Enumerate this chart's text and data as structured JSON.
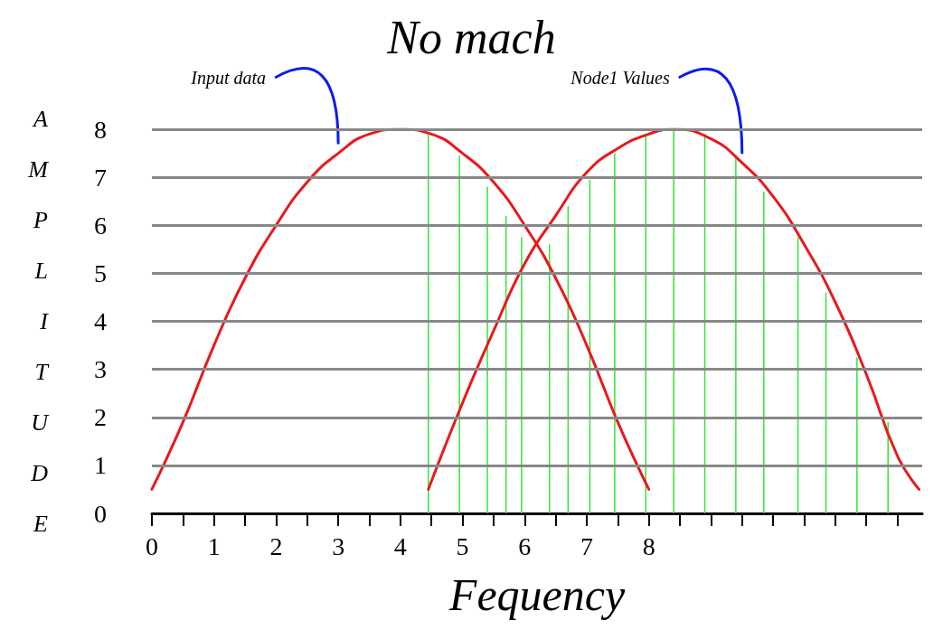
{
  "chart_data": {
    "type": "line",
    "title": "No mach",
    "xlabel": "Fequency",
    "ylabel": "AMPLITUDE",
    "xlim": [
      0,
      12.4
    ],
    "ylim": [
      0,
      8
    ],
    "xticks": [
      0,
      {
        "value": 0.5,
        "label": null
      },
      1,
      {
        "value": 1.5,
        "label": null
      },
      2,
      {
        "value": 2.5,
        "label": null
      },
      3,
      {
        "value": 3.5,
        "label": null
      },
      4,
      {
        "value": 4.5,
        "label": null
      },
      5,
      {
        "value": 5.5,
        "label": null
      },
      6,
      {
        "value": 6.5,
        "label": null
      },
      7,
      {
        "value": 7.5,
        "label": null
      },
      8,
      {
        "value": 8.5,
        "label": null
      },
      {
        "value": 9,
        "label": null
      },
      {
        "value": 9.5,
        "label": null
      },
      {
        "value": 10,
        "label": null
      },
      {
        "value": 10.5,
        "label": null
      },
      {
        "value": 11,
        "label": null
      },
      {
        "value": 11.5,
        "label": null
      },
      {
        "value": 12,
        "label": null
      }
    ],
    "yticks": [
      0,
      1,
      2,
      3,
      4,
      5,
      6,
      7,
      8
    ],
    "grid": "y",
    "marker": "none",
    "series": [
      {
        "name": "Input data",
        "color": "#e8191c",
        "x": [
          0,
          0.5,
          1,
          1.5,
          2,
          2.5,
          3,
          3.5,
          4,
          4.5,
          5,
          5.5,
          6,
          6.5,
          7,
          7.5,
          8
        ],
        "values": [
          0.5,
          1.9,
          3.5,
          4.9,
          6,
          6.9,
          7.5,
          7.9,
          8,
          7.9,
          7.5,
          6.9,
          6,
          4.9,
          3.5,
          1.9,
          0.5
        ]
      },
      {
        "name": "Node1 Values",
        "color": "#e8191c",
        "x": [
          4.45,
          5,
          5.5,
          6,
          6.5,
          7,
          7.5,
          8,
          8.4,
          9,
          9.5,
          10,
          10.5,
          11,
          11.5,
          12,
          12.35
        ],
        "values": [
          0.5,
          2.3,
          3.8,
          5.2,
          6.2,
          7.1,
          7.6,
          7.9,
          8,
          7.8,
          7.3,
          6.6,
          5.6,
          4.4,
          2.9,
          1.2,
          0.5
        ]
      },
      {
        "type": "bar",
        "color": "#33e633",
        "x": [
          4.45,
          4.95,
          5.4,
          5.7,
          5.95,
          6.4,
          6.7,
          7.05,
          7.45,
          7.95,
          8.4,
          8.9,
          9.4,
          9.85,
          10.4,
          10.85,
          11.35,
          11.85
        ],
        "values": [
          7.9,
          7.45,
          6.8,
          6.2,
          5.75,
          5.6,
          6.4,
          6.95,
          7.5,
          7.9,
          8,
          7.9,
          7.45,
          6.7,
          5.75,
          4.6,
          3.25,
          1.9
        ]
      }
    ]
  }
}
